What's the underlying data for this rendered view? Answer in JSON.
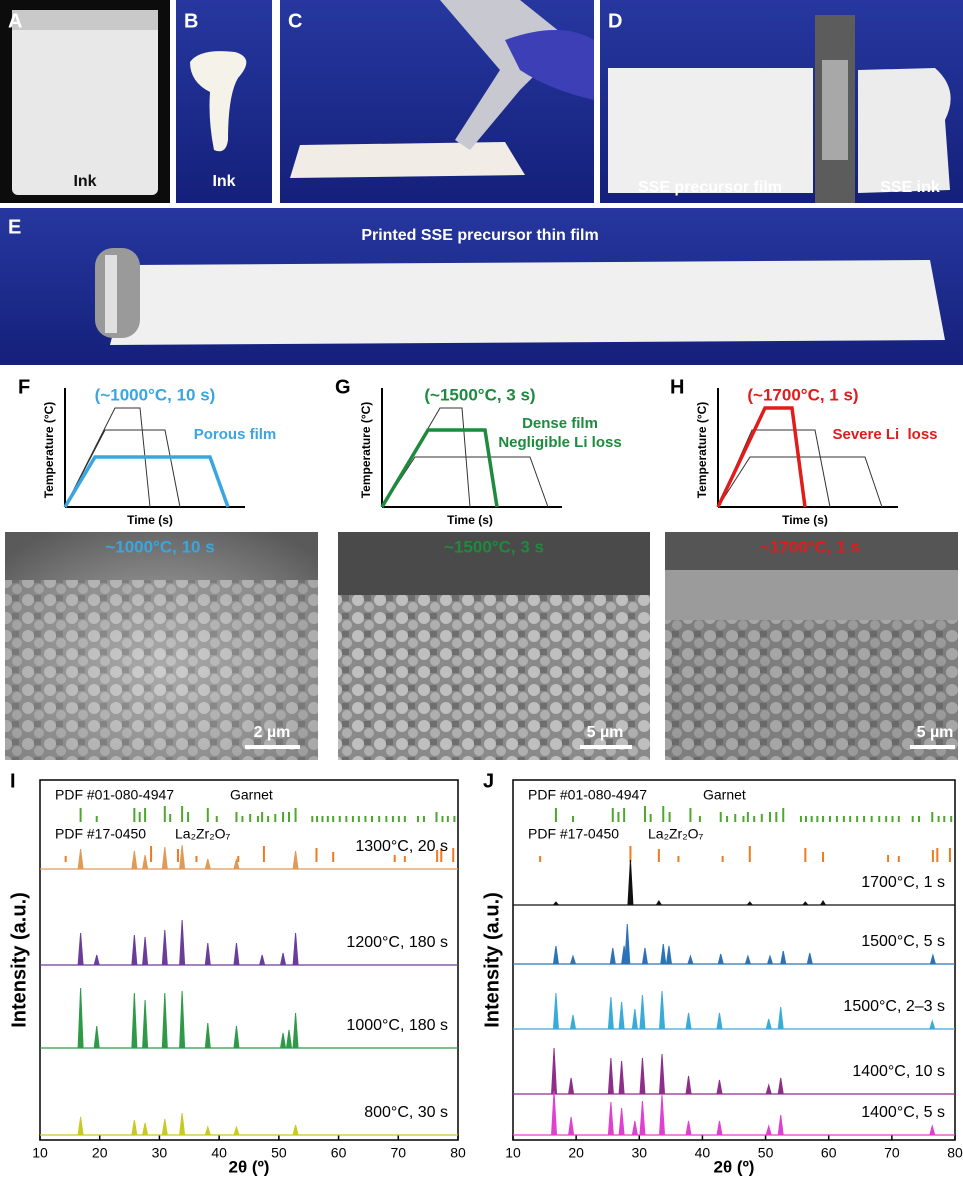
{
  "photos": [
    {
      "letter": "A",
      "label": "Ink"
    },
    {
      "letter": "B",
      "label": "Ink"
    },
    {
      "letter": "C"
    },
    {
      "letter": "D",
      "labels": [
        "SSE precursor film",
        "SSE ink"
      ]
    },
    {
      "letter": "E",
      "label": "Printed SSE precursor thin film"
    }
  ],
  "schematics": [
    {
      "letter": "F",
      "condition": "(~1000°C, 10 s)",
      "notes": [
        "Porous film"
      ],
      "y_label": "Temperature (°C)",
      "x_label": "Time (s)"
    },
    {
      "letter": "G",
      "condition": "(~1500°C, 3 s)",
      "notes": [
        "Dense film",
        "Negligible Li loss"
      ],
      "y_label": "Temperature (°C)",
      "x_label": "Time (s)"
    },
    {
      "letter": "H",
      "condition": "(~1700°C, 1 s)",
      "notes": [
        "Severe Li  loss"
      ],
      "y_label": "Temperature (°C)",
      "x_label": "Time (s)"
    }
  ],
  "sem": [
    {
      "condition": "~1000°C, 10 s",
      "scale": "2 µm"
    },
    {
      "condition": "~1500°C, 3 s",
      "scale": "5 µm"
    },
    {
      "condition": "~1700°C, 1 s",
      "scale": "5 µm"
    }
  ],
  "xrd": [
    {
      "letter": "I",
      "x_label": "2θ (º)",
      "y_label": "Intensity (a.u.)",
      "xlim": [
        10,
        80
      ],
      "xticks": [
        10,
        20,
        30,
        40,
        50,
        60,
        70,
        80
      ],
      "references": [
        {
          "name": "PDF #01-080-4947",
          "phase": "Garnet",
          "color": "#4ca82c",
          "x": [
            16.8,
            19.5,
            25.8,
            26.7,
            27.6,
            30.9,
            31.8,
            33.8,
            34.8,
            38.1,
            39.6,
            42.9,
            43.9,
            45.2,
            46.5,
            47.2,
            48.2,
            49.4,
            50.7,
            51.7,
            52.8,
            55.6,
            56.4,
            57.3,
            58.2,
            59.1,
            60.2,
            61.3,
            62.4,
            63.4,
            64.5,
            65.6,
            66.8,
            68.0,
            69.1,
            70.1,
            71.1,
            73.3,
            74.3,
            76.4,
            77.4,
            78.3,
            79.4
          ],
          "h": [
            14,
            6,
            14,
            10,
            14,
            16,
            8,
            16,
            10,
            14,
            6,
            10,
            6,
            8,
            6,
            10,
            6,
            8,
            10,
            10,
            14,
            6,
            6,
            6,
            6,
            6,
            6,
            6,
            6,
            6,
            6,
            6,
            6,
            6,
            6,
            6,
            6,
            6,
            6,
            10,
            6,
            6,
            6
          ]
        },
        {
          "name": "PDF #17-0450",
          "phase": "La₂Zr₂O₇",
          "color": "#ee7a22",
          "x": [
            14.3,
            28.6,
            33.1,
            36.2,
            43.2,
            47.5,
            56.3,
            59.1,
            69.4,
            71.1,
            76.5,
            77.2,
            79.2
          ],
          "h": [
            6,
            16,
            13,
            6,
            6,
            16,
            14,
            10,
            7,
            6,
            12,
            14,
            14
          ]
        }
      ],
      "traces": [
        {
          "name": "1300°C, 20 s",
          "color": "#e09a58",
          "x": [
            16.8,
            25.8,
            27.6,
            30.9,
            33.8,
            38.1,
            42.9,
            52.8
          ],
          "h": [
            20,
            18,
            14,
            22,
            24,
            10,
            10,
            18
          ]
        },
        {
          "name": "1200°C, 180 s",
          "color": "#6a3d9a",
          "x": [
            16.8,
            19.5,
            25.8,
            27.6,
            30.9,
            33.8,
            38.1,
            42.9,
            47.2,
            50.7,
            52.8
          ],
          "h": [
            32,
            10,
            30,
            28,
            35,
            45,
            22,
            22,
            10,
            12,
            32
          ]
        },
        {
          "name": "1000°C, 180 s",
          "color": "#2e9a48",
          "x": [
            16.8,
            19.5,
            25.8,
            27.6,
            30.9,
            33.8,
            38.1,
            42.9,
            50.7,
            51.7,
            52.8
          ],
          "h": [
            60,
            22,
            55,
            48,
            55,
            57,
            25,
            22,
            15,
            18,
            35
          ]
        },
        {
          "name": "800°C, 30 s",
          "color": "#c8c828",
          "x": [
            16.8,
            25.8,
            27.6,
            30.9,
            33.8,
            38.1,
            42.9,
            52.8
          ],
          "h": [
            18,
            15,
            12,
            16,
            22,
            8,
            8,
            10
          ]
        }
      ]
    },
    {
      "letter": "J",
      "x_label": "2θ (º)",
      "y_label": "Intensity (a.u.)",
      "xlim": [
        10,
        80
      ],
      "xticks": [
        10,
        20,
        30,
        40,
        50,
        60,
        70,
        80
      ],
      "references": [
        {
          "name": "PDF #01-080-4947",
          "phase": "Garnet",
          "color": "#4ca82c",
          "x": [
            16.8,
            19.5,
            25.8,
            26.7,
            27.6,
            30.9,
            31.8,
            33.8,
            34.8,
            38.1,
            39.6,
            42.9,
            43.9,
            45.2,
            46.5,
            47.2,
            48.2,
            49.4,
            50.7,
            51.7,
            52.8,
            55.6,
            56.4,
            57.3,
            58.2,
            59.1,
            60.2,
            61.3,
            62.4,
            63.4,
            64.5,
            65.6,
            66.8,
            68.0,
            69.1,
            70.1,
            71.1,
            73.3,
            74.3,
            76.4,
            77.4,
            78.3,
            79.4
          ],
          "h": [
            14,
            6,
            14,
            10,
            14,
            16,
            8,
            16,
            10,
            14,
            6,
            10,
            6,
            8,
            6,
            10,
            6,
            8,
            10,
            10,
            14,
            6,
            6,
            6,
            6,
            6,
            6,
            6,
            6,
            6,
            6,
            6,
            6,
            6,
            6,
            6,
            6,
            6,
            6,
            10,
            6,
            6,
            6
          ]
        },
        {
          "name": "PDF #17-0450",
          "phase": "La₂Zr₂O₇",
          "color": "#ee7a22",
          "x": [
            14.3,
            28.6,
            33.1,
            36.2,
            43.2,
            47.5,
            56.3,
            59.1,
            69.4,
            71.1,
            76.5,
            77.2,
            79.2
          ],
          "h": [
            6,
            16,
            13,
            6,
            6,
            16,
            14,
            10,
            7,
            6,
            12,
            14,
            14
          ]
        }
      ],
      "traces": [
        {
          "name": "1700°C, 1 s",
          "color": "#111111",
          "x": [
            16.8,
            28.6,
            33.1,
            47.5,
            56.3,
            59.1
          ],
          "h": [
            3,
            45,
            4,
            3,
            3,
            4
          ]
        },
        {
          "name": "1500°C, 5 s",
          "color": "#2a73b8",
          "x": [
            16.8,
            19.5,
            25.8,
            27.6,
            28.1,
            30.9,
            33.8,
            34.7,
            38.1,
            42.9,
            47.2,
            50.7,
            52.8,
            57.0,
            76.5
          ],
          "h": [
            18,
            8,
            16,
            18,
            40,
            16,
            20,
            18,
            8,
            10,
            8,
            8,
            13,
            11,
            9
          ]
        },
        {
          "name": "1500°C, 2–3 s",
          "color": "#3aaad8",
          "x": [
            16.8,
            19.5,
            25.5,
            27.2,
            29.3,
            30.5,
            33.6,
            37.8,
            42.7,
            50.5,
            52.4,
            76.4
          ],
          "h": [
            36,
            14,
            32,
            27,
            20,
            34,
            38,
            16,
            16,
            10,
            22,
            8
          ]
        },
        {
          "name": "1400°C, 10 s",
          "color": "#8e2e8a",
          "x": [
            16.5,
            19.2,
            25.5,
            27.2,
            30.5,
            33.6,
            37.8,
            42.7,
            50.5,
            52.4
          ],
          "h": [
            46,
            16,
            36,
            33,
            36,
            40,
            18,
            14,
            9,
            16
          ]
        },
        {
          "name": "1400°C, 5 s",
          "color": "#e040d0",
          "x": [
            16.5,
            19.2,
            25.5,
            27.2,
            29.3,
            30.5,
            33.6,
            37.8,
            42.7,
            50.5,
            52.4,
            76.4
          ],
          "h": [
            44,
            18,
            33,
            27,
            14,
            34,
            40,
            14,
            14,
            9,
            20,
            9
          ]
        }
      ]
    }
  ]
}
